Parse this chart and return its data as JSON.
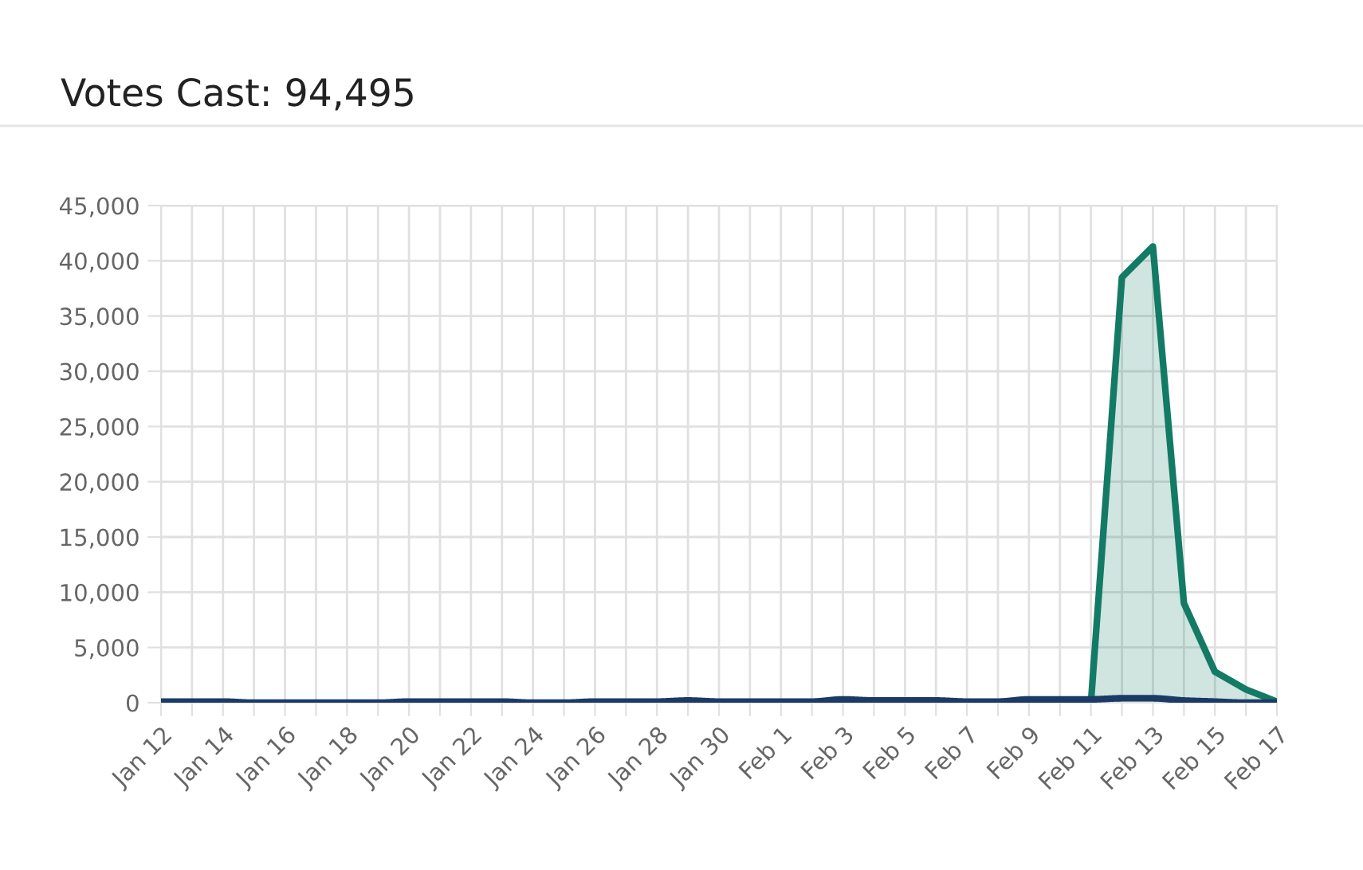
{
  "chart_data": {
    "type": "line",
    "title": "Votes Cast: 94,495",
    "categories": [
      "Jan 12",
      null,
      "Jan 14",
      null,
      "Jan 16",
      null,
      "Jan 18",
      null,
      "Jan 20",
      null,
      "Jan 22",
      null,
      "Jan 24",
      null,
      "Jan 26",
      null,
      "Jan 28",
      null,
      "Jan 30",
      null,
      "Feb 1",
      null,
      "Feb 3",
      null,
      "Feb 5",
      null,
      "Feb 7",
      null,
      "Feb 9",
      null,
      "Feb 11",
      null,
      "Feb 13",
      null,
      "Feb 15",
      null,
      "Feb 17"
    ],
    "series": [
      {
        "type": "area",
        "color": "#137a66",
        "values": [
          null,
          null,
          null,
          null,
          null,
          null,
          null,
          null,
          null,
          null,
          null,
          null,
          null,
          null,
          null,
          null,
          null,
          null,
          null,
          null,
          null,
          null,
          null,
          null,
          null,
          null,
          null,
          null,
          null,
          null,
          0,
          38500,
          41300,
          9000,
          2800,
          1200,
          100
        ]
      },
      {
        "color": "#1b3a66",
        "values": [
          100,
          100,
          100,
          0,
          0,
          0,
          0,
          0,
          100,
          100,
          100,
          100,
          0,
          0,
          100,
          100,
          100,
          200,
          100,
          100,
          100,
          100,
          300,
          200,
          200,
          200,
          100,
          100,
          300,
          300,
          300,
          400,
          400,
          200,
          100,
          0,
          0
        ]
      }
    ],
    "ylim": [
      0,
      45000
    ],
    "yticks": [
      {
        "value": 0,
        "label": "0"
      },
      {
        "value": 5000,
        "label": "5,000"
      },
      {
        "value": 10000,
        "label": "10,000"
      },
      {
        "value": 15000,
        "label": "15,000"
      },
      {
        "value": 20000,
        "label": "20,000"
      },
      {
        "value": 25000,
        "label": "25,000"
      },
      {
        "value": 30000,
        "label": "30,000"
      },
      {
        "value": 35000,
        "label": "35,000"
      },
      {
        "value": 40000,
        "label": "40,000"
      },
      {
        "value": 45000,
        "label": "45,000"
      }
    ],
    "grid": true,
    "marker": "none",
    "line_style": "solid"
  }
}
